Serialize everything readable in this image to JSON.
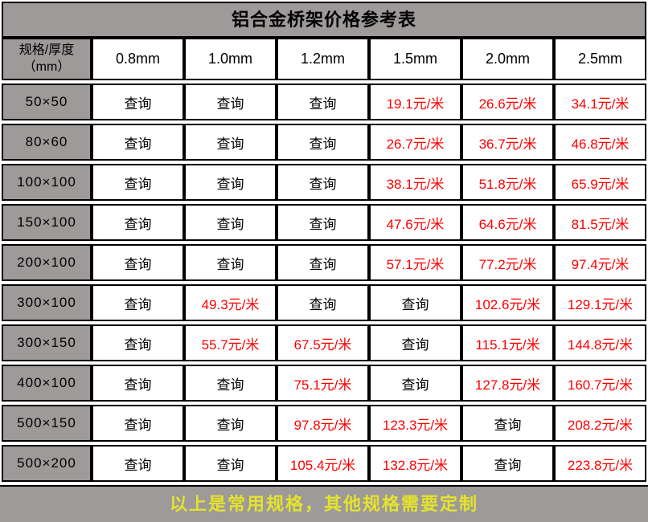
{
  "title": "铝合金桥架价格参考表",
  "table": {
    "corner_header": {
      "line1": "规格/厚度",
      "line2": "（mm）"
    },
    "column_headers": [
      "0.8mm",
      "1.0mm",
      "1.2mm",
      "1.5mm",
      "2.0mm",
      "2.5mm"
    ],
    "query_label": "查询",
    "rows": [
      {
        "spec": "50×50",
        "cells": [
          {
            "text": "查询",
            "kind": "query"
          },
          {
            "text": "查询",
            "kind": "query"
          },
          {
            "text": "查询",
            "kind": "query"
          },
          {
            "text": "19.1元/米",
            "kind": "price"
          },
          {
            "text": "26.6元/米",
            "kind": "price"
          },
          {
            "text": "34.1元/米",
            "kind": "price"
          }
        ]
      },
      {
        "spec": "80×60",
        "cells": [
          {
            "text": "查询",
            "kind": "query"
          },
          {
            "text": "查询",
            "kind": "query"
          },
          {
            "text": "查询",
            "kind": "query"
          },
          {
            "text": "26.7元/米",
            "kind": "price"
          },
          {
            "text": "36.7元/米",
            "kind": "price"
          },
          {
            "text": "46.8元/米",
            "kind": "price"
          }
        ]
      },
      {
        "spec": "100×100",
        "cells": [
          {
            "text": "查询",
            "kind": "query"
          },
          {
            "text": "查询",
            "kind": "query"
          },
          {
            "text": "查询",
            "kind": "query"
          },
          {
            "text": "38.1元/米",
            "kind": "price"
          },
          {
            "text": "51.8元/米",
            "kind": "price"
          },
          {
            "text": "65.9元/米",
            "kind": "price"
          }
        ]
      },
      {
        "spec": "150×100",
        "cells": [
          {
            "text": "查询",
            "kind": "query"
          },
          {
            "text": "查询",
            "kind": "query"
          },
          {
            "text": "查询",
            "kind": "query"
          },
          {
            "text": "47.6元/米",
            "kind": "price"
          },
          {
            "text": "64.6元/米",
            "kind": "price"
          },
          {
            "text": "81.5元/米",
            "kind": "price"
          }
        ]
      },
      {
        "spec": "200×100",
        "cells": [
          {
            "text": "查询",
            "kind": "query"
          },
          {
            "text": "查询",
            "kind": "query"
          },
          {
            "text": "查询",
            "kind": "query"
          },
          {
            "text": "57.1元/米",
            "kind": "price"
          },
          {
            "text": "77.2元/米",
            "kind": "price"
          },
          {
            "text": "97.4元/米",
            "kind": "price"
          }
        ]
      },
      {
        "spec": "300×100",
        "cells": [
          {
            "text": "查询",
            "kind": "query"
          },
          {
            "text": "49.3元/米",
            "kind": "price"
          },
          {
            "text": "查询",
            "kind": "query"
          },
          {
            "text": "查询",
            "kind": "query"
          },
          {
            "text": "102.6元/米",
            "kind": "price"
          },
          {
            "text": "129.1元/米",
            "kind": "price"
          }
        ]
      },
      {
        "spec": "300×150",
        "cells": [
          {
            "text": "查询",
            "kind": "query"
          },
          {
            "text": "55.7元/米",
            "kind": "price"
          },
          {
            "text": "67.5元/米",
            "kind": "price"
          },
          {
            "text": "查询",
            "kind": "query"
          },
          {
            "text": "115.1元/米",
            "kind": "price"
          },
          {
            "text": "144.8元/米",
            "kind": "price"
          }
        ]
      },
      {
        "spec": "400×100",
        "cells": [
          {
            "text": "查询",
            "kind": "query"
          },
          {
            "text": "查询",
            "kind": "query"
          },
          {
            "text": "75.1元/米",
            "kind": "price"
          },
          {
            "text": "查询",
            "kind": "query"
          },
          {
            "text": "127.8元/米",
            "kind": "price"
          },
          {
            "text": "160.7元/米",
            "kind": "price"
          }
        ]
      },
      {
        "spec": "500×150",
        "cells": [
          {
            "text": "查询",
            "kind": "query"
          },
          {
            "text": "查询",
            "kind": "query"
          },
          {
            "text": "97.8元/米",
            "kind": "price"
          },
          {
            "text": "123.3元/米",
            "kind": "price"
          },
          {
            "text": "查询",
            "kind": "query"
          },
          {
            "text": "208.2元/米",
            "kind": "price"
          }
        ]
      },
      {
        "spec": "500×200",
        "cells": [
          {
            "text": "查询",
            "kind": "query"
          },
          {
            "text": "查询",
            "kind": "query"
          },
          {
            "text": "105.4元/米",
            "kind": "price"
          },
          {
            "text": "132.8元/米",
            "kind": "price"
          },
          {
            "text": "查询",
            "kind": "query"
          },
          {
            "text": "223.8元/米",
            "kind": "price"
          }
        ]
      }
    ]
  },
  "footer": {
    "note": "以上是常用规格，其他规格需要定制"
  },
  "colors": {
    "header_gray": "#9d9a99",
    "price_red": "#fe0000",
    "footer_yellow": "#e5e32b",
    "border_black": "#000000",
    "cell_white": "#ffffff"
  }
}
